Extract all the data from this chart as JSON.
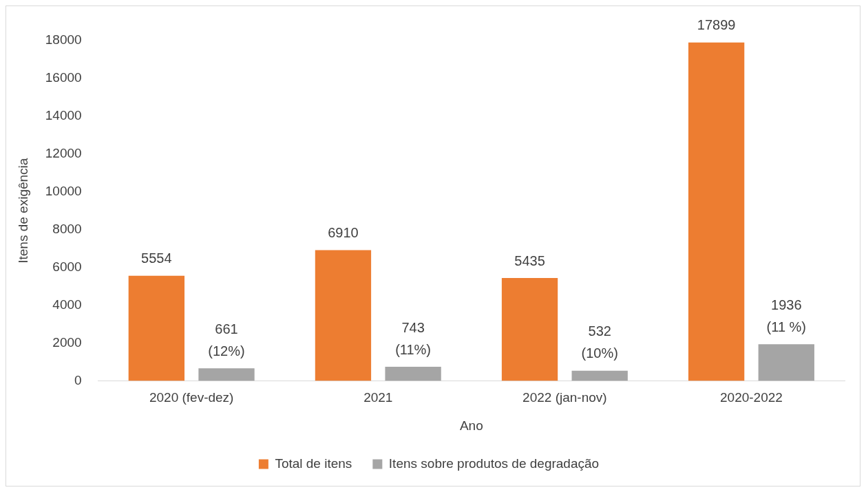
{
  "chart_data": {
    "type": "bar",
    "xlabel": "Ano",
    "ylabel": "Itens de exigência",
    "categories": [
      "2020 (fev-dez)",
      "2021",
      "2022 (jan-nov)",
      "2020-2022"
    ],
    "series": [
      {
        "name": "Total de itens",
        "color": "#ed7d31",
        "values": [
          5554,
          6910,
          5435,
          17899
        ],
        "value_labels": [
          "5554",
          "6910",
          "5435",
          "17899"
        ]
      },
      {
        "name": "Itens sobre produtos de degradação",
        "color": "#a5a5a5",
        "values": [
          661,
          743,
          532,
          1936
        ],
        "value_labels": [
          "661\n(12%)",
          "743\n(11%)",
          "532\n(10%)",
          "1936\n(11 %)"
        ]
      }
    ],
    "ylim": [
      0,
      18000
    ],
    "yticks": [
      0,
      2000,
      4000,
      6000,
      8000,
      10000,
      12000,
      14000,
      16000,
      18000
    ],
    "grid": false,
    "legend": "bottom"
  }
}
